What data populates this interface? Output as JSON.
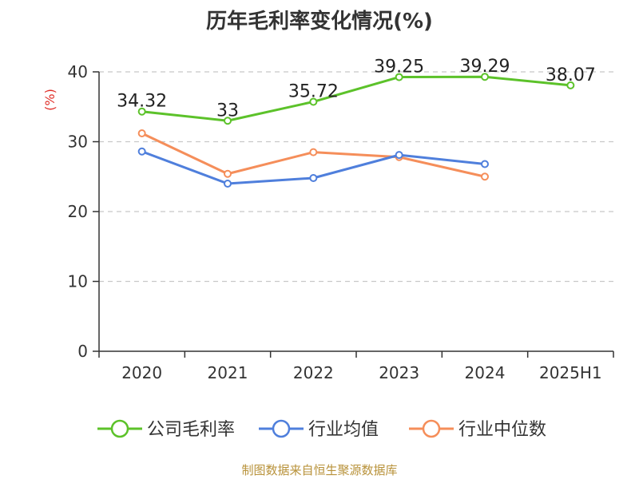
{
  "chart_data": {
    "type": "line",
    "title": "历年毛利率变化情况(%)",
    "ylabel": "(%)",
    "categories": [
      "2020",
      "2021",
      "2022",
      "2023",
      "2024",
      "2025H1"
    ],
    "ylim": [
      0,
      40
    ],
    "yticks": [
      0,
      10,
      20,
      30,
      40
    ],
    "grid": true,
    "legend_position": "bottom",
    "series": [
      {
        "name": "公司毛利率",
        "color": "#5cc22a",
        "values": [
          34.32,
          33,
          35.72,
          39.25,
          39.29,
          38.07
        ],
        "labels": [
          "34.32",
          "33",
          "35.72",
          "39.25",
          "39.29",
          "38.07"
        ]
      },
      {
        "name": "行业均值",
        "color": "#4f7fdc",
        "values": [
          28.6,
          24.0,
          24.8,
          28.1,
          26.8,
          null
        ]
      },
      {
        "name": "行业中位数",
        "color": "#f58e5a",
        "values": [
          31.2,
          25.4,
          28.5,
          27.8,
          25.0,
          null
        ]
      }
    ]
  },
  "source": "制图数据来自恒生聚源数据库"
}
